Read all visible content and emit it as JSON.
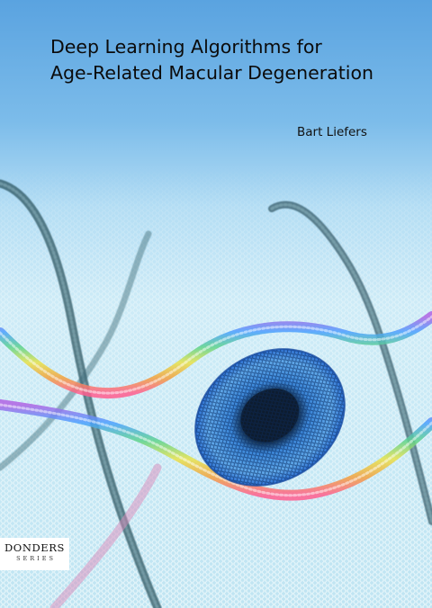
{
  "book": {
    "title_line_1": "Deep Learning Algorithms for",
    "title_line_2": "Age-Related Macular Degeneration",
    "author": "Bart Liefers",
    "series_name": "DONDERS",
    "series_sub": "SERIES"
  },
  "illustration": {
    "subject": "eye-of-hexagon-lattice-with-spiraling-strands",
    "colors": {
      "sky_top": "#5aa3e0",
      "lattice": "#e6f6fb",
      "iris_outer": "#2c6fd2",
      "iris_mid": "#5fa7e8",
      "pupil": "#0d1b2e",
      "strand_dark": "#2f5662",
      "strand_rainbow": [
        "#ff5d8f",
        "#f2a03d",
        "#e8e24a",
        "#5ed38b",
        "#4aa0ff",
        "#b063e3"
      ]
    }
  }
}
